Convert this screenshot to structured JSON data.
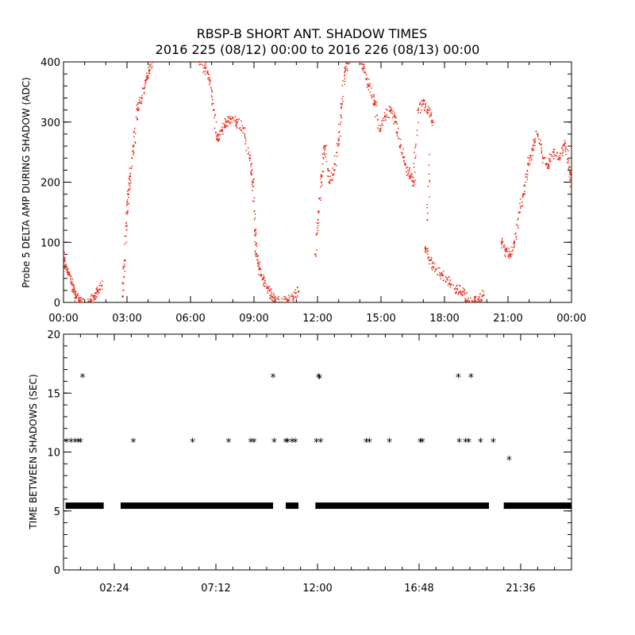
{
  "title_line1": "RBSP-B SHORT ANT. SHADOW TIMES",
  "title_line2": "2016 225 (08/12) 00:00 to 2016 226 (08/13) 00:00",
  "chart_data": [
    {
      "type": "scatter",
      "ylabel": "Probe 5 DELTA AMP DURING SHADOW (ADC)",
      "xlim": [
        0,
        24
      ],
      "ylim": [
        0,
        400
      ],
      "x_tick_labels": [
        "00:00",
        "03:00",
        "06:00",
        "09:00",
        "12:00",
        "15:00",
        "18:00",
        "21:00",
        "00:00"
      ],
      "x_tick_values": [
        0,
        3,
        6,
        9,
        12,
        15,
        18,
        21,
        24
      ],
      "y_tick_labels": [
        "0",
        "100",
        "200",
        "300",
        "400"
      ],
      "y_tick_values": [
        0,
        100,
        200,
        300,
        400
      ],
      "color": "#e8321e",
      "x_unit": "hours",
      "series": [
        {
          "points": [
            [
              0.0,
              80
            ],
            [
              0.1,
              60
            ],
            [
              0.25,
              50
            ],
            [
              0.4,
              30
            ],
            [
              0.5,
              20
            ],
            [
              0.6,
              8
            ],
            [
              0.75,
              2
            ],
            [
              0.9,
              0
            ],
            [
              1.3,
              2
            ],
            [
              1.45,
              10
            ],
            [
              1.6,
              18
            ],
            [
              1.8,
              28
            ],
            [
              2.8,
              10
            ],
            [
              2.9,
              70
            ],
            [
              3.0,
              150
            ],
            [
              3.05,
              180
            ],
            [
              3.15,
              210
            ],
            [
              3.3,
              260
            ],
            [
              3.5,
              320
            ],
            [
              3.7,
              340
            ],
            [
              3.9,
              370
            ],
            [
              4.05,
              385
            ],
            [
              4.2,
              400
            ],
            [
              6.4,
              400
            ],
            [
              6.7,
              390
            ],
            [
              6.9,
              370
            ],
            [
              7.1,
              320
            ],
            [
              7.3,
              270
            ],
            [
              7.5,
              285
            ],
            [
              7.7,
              300
            ],
            [
              7.9,
              305
            ],
            [
              8.2,
              300
            ],
            [
              8.5,
              290
            ],
            [
              8.8,
              240
            ],
            [
              8.95,
              200
            ],
            [
              9.05,
              120
            ],
            [
              9.1,
              80
            ],
            [
              9.25,
              55
            ],
            [
              9.45,
              40
            ],
            [
              9.65,
              25
            ],
            [
              9.85,
              10
            ],
            [
              10.0,
              2
            ],
            [
              10.3,
              0
            ],
            [
              10.6,
              3
            ],
            [
              10.85,
              10
            ],
            [
              11.1,
              18
            ],
            [
              11.9,
              80
            ],
            [
              12.05,
              150
            ],
            [
              12.2,
              210
            ],
            [
              12.35,
              260
            ],
            [
              12.55,
              200
            ],
            [
              12.8,
              220
            ],
            [
              13.0,
              270
            ],
            [
              13.15,
              330
            ],
            [
              13.3,
              390
            ],
            [
              13.5,
              400
            ],
            [
              14.0,
              400
            ],
            [
              14.2,
              390
            ],
            [
              14.45,
              360
            ],
            [
              14.7,
              330
            ],
            [
              14.95,
              285
            ],
            [
              15.2,
              310
            ],
            [
              15.45,
              320
            ],
            [
              15.7,
              300
            ],
            [
              15.9,
              260
            ],
            [
              16.15,
              230
            ],
            [
              16.35,
              210
            ],
            [
              16.55,
              200
            ],
            [
              16.75,
              320
            ],
            [
              17.0,
              330
            ],
            [
              17.2,
              320
            ],
            [
              17.45,
              300
            ],
            [
              17.1,
              90
            ],
            [
              17.3,
              70
            ],
            [
              17.6,
              55
            ],
            [
              17.9,
              45
            ],
            [
              18.3,
              30
            ],
            [
              18.6,
              22
            ],
            [
              18.85,
              18
            ],
            [
              19.1,
              3
            ],
            [
              19.35,
              0
            ],
            [
              19.6,
              5
            ],
            [
              19.85,
              12
            ],
            [
              20.7,
              100
            ],
            [
              20.9,
              85
            ],
            [
              21.1,
              80
            ],
            [
              21.3,
              100
            ],
            [
              21.55,
              150
            ],
            [
              21.75,
              180
            ],
            [
              21.95,
              230
            ],
            [
              22.15,
              255
            ],
            [
              22.4,
              280
            ],
            [
              22.65,
              240
            ],
            [
              22.9,
              230
            ],
            [
              23.15,
              250
            ],
            [
              23.45,
              240
            ],
            [
              23.7,
              265
            ],
            [
              23.9,
              225
            ],
            [
              24.0,
              200
            ]
          ]
        }
      ]
    },
    {
      "type": "scatter",
      "ylabel": "TIME BETWEEN SHADOWS (SEC)",
      "xlim": [
        0,
        24
      ],
      "ylim": [
        0,
        20
      ],
      "x_tick_labels": [
        "02:24",
        "07:12",
        "12:00",
        "16:48",
        "21:36"
      ],
      "x_tick_values": [
        2.4,
        7.2,
        12.0,
        16.8,
        21.6
      ],
      "y_tick_labels": [
        "0",
        "5",
        "10",
        "15",
        "20"
      ],
      "y_tick_values": [
        0,
        5,
        10,
        15,
        20
      ],
      "color": "#000000",
      "marker": "*",
      "x_unit": "hours",
      "baseline_segments": [
        [
          0.1,
          1.9
        ],
        [
          2.7,
          9.9
        ],
        [
          10.5,
          11.1
        ],
        [
          11.9,
          20.1
        ],
        [
          20.8,
          24.0
        ]
      ],
      "baseline_value": 5.45,
      "series": [
        {
          "points": [
            [
              0.15,
              10.9
            ],
            [
              0.35,
              10.9
            ],
            [
              0.55,
              10.9
            ],
            [
              0.7,
              10.9
            ],
            [
              0.8,
              10.9
            ],
            [
              0.9,
              16.4
            ],
            [
              3.3,
              10.9
            ],
            [
              6.1,
              10.9
            ],
            [
              7.8,
              10.9
            ],
            [
              8.85,
              10.9
            ],
            [
              9.0,
              10.9
            ],
            [
              9.9,
              16.4
            ],
            [
              9.95,
              10.9
            ],
            [
              10.5,
              10.9
            ],
            [
              10.6,
              10.9
            ],
            [
              10.8,
              10.9
            ],
            [
              10.95,
              10.9
            ],
            [
              11.95,
              10.9
            ],
            [
              12.05,
              16.4
            ],
            [
              12.1,
              16.3
            ],
            [
              12.15,
              10.9
            ],
            [
              14.3,
              10.9
            ],
            [
              14.45,
              10.9
            ],
            [
              15.4,
              10.9
            ],
            [
              16.85,
              10.9
            ],
            [
              16.95,
              10.9
            ],
            [
              18.65,
              16.4
            ],
            [
              18.7,
              10.9
            ],
            [
              19.0,
              10.9
            ],
            [
              19.15,
              10.9
            ],
            [
              19.25,
              16.4
            ],
            [
              19.7,
              10.9
            ],
            [
              20.3,
              10.9
            ],
            [
              21.05,
              9.4
            ]
          ]
        }
      ]
    }
  ]
}
